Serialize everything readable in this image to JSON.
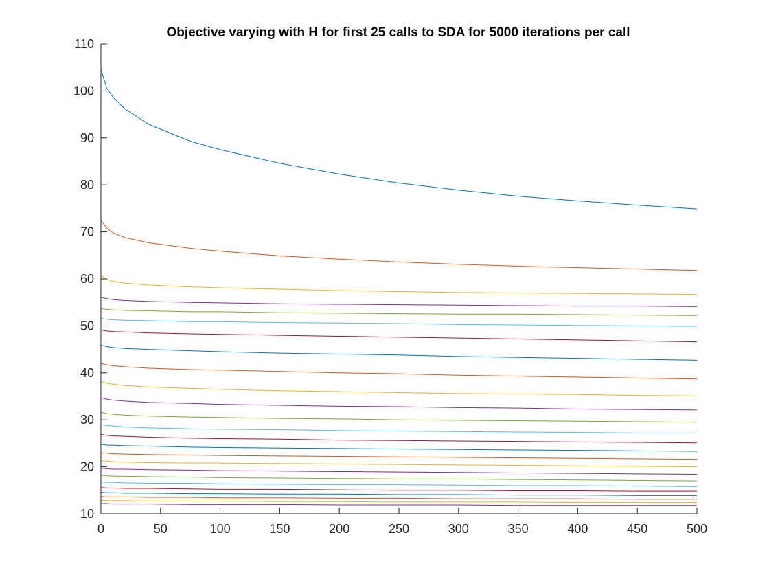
{
  "chart_data": {
    "type": "line",
    "title": "Objective varying with H for first 25 calls to SDA for 5000 iterations per call",
    "xlabel": "",
    "ylabel": "",
    "xlim": [
      0,
      500
    ],
    "ylim": [
      10,
      110
    ],
    "xticks": [
      0,
      50,
      100,
      150,
      200,
      250,
      300,
      350,
      400,
      450,
      500
    ],
    "yticks": [
      10,
      20,
      30,
      40,
      50,
      60,
      70,
      80,
      90,
      100,
      110
    ],
    "grid": false,
    "legend": "none",
    "x": [
      0,
      5,
      10,
      20,
      40,
      75,
      100,
      150,
      200,
      250,
      300,
      350,
      400,
      450,
      500
    ],
    "series": [
      {
        "color": "#0072BD",
        "values": [
          104.6,
          100.5,
          98.7,
          96.2,
          92.9,
          89.3,
          87.5,
          84.6,
          82.3,
          80.4,
          78.9,
          77.6,
          76.6,
          75.7,
          74.9
        ]
      },
      {
        "color": "#D95319",
        "values": [
          72.5,
          70.8,
          69.8,
          68.8,
          67.7,
          66.5,
          65.9,
          64.9,
          64.2,
          63.6,
          63.1,
          62.7,
          62.4,
          62.1,
          61.8
        ]
      },
      {
        "color": "#EDB120",
        "values": [
          60.7,
          59.9,
          59.5,
          59.1,
          58.7,
          58.3,
          58.1,
          57.8,
          57.5,
          57.3,
          57.1,
          57.0,
          56.9,
          56.8,
          56.7
        ]
      },
      {
        "color": "#7E2F8E",
        "values": [
          56.1,
          55.8,
          55.6,
          55.4,
          55.2,
          55.0,
          54.9,
          54.7,
          54.6,
          54.5,
          54.4,
          54.3,
          54.2,
          54.2,
          54.1
        ]
      },
      {
        "color": "#77AC30",
        "values": [
          53.7,
          53.5,
          53.4,
          53.3,
          53.2,
          53.0,
          53.0,
          52.8,
          52.7,
          52.6,
          52.5,
          52.5,
          52.4,
          52.3,
          52.2
        ]
      },
      {
        "color": "#4DBEEE",
        "values": [
          51.6,
          51.4,
          51.3,
          51.2,
          51.1,
          50.9,
          50.9,
          50.7,
          50.6,
          50.5,
          50.3,
          50.2,
          50.1,
          50.0,
          49.9
        ]
      },
      {
        "color": "#A2142F",
        "values": [
          49.1,
          48.9,
          48.8,
          48.7,
          48.5,
          48.3,
          48.2,
          48.0,
          47.8,
          47.6,
          47.4,
          47.2,
          47.0,
          46.8,
          46.6
        ]
      },
      {
        "color": "#0072BD",
        "values": [
          45.9,
          45.6,
          45.4,
          45.2,
          45.0,
          44.7,
          44.5,
          44.2,
          44.0,
          43.8,
          43.5,
          43.3,
          43.1,
          42.9,
          42.7
        ]
      },
      {
        "color": "#D95319",
        "values": [
          42.0,
          41.7,
          41.5,
          41.3,
          41.0,
          40.7,
          40.6,
          40.3,
          40.0,
          39.8,
          39.5,
          39.3,
          39.1,
          38.9,
          38.7
        ]
      },
      {
        "color": "#EDB120",
        "values": [
          38.2,
          37.8,
          37.6,
          37.3,
          37.0,
          36.7,
          36.5,
          36.2,
          36.0,
          35.8,
          35.6,
          35.5,
          35.4,
          35.2,
          35.1
        ]
      },
      {
        "color": "#7E2F8E",
        "values": [
          34.7,
          34.4,
          34.2,
          34.0,
          33.7,
          33.5,
          33.3,
          33.1,
          32.9,
          32.8,
          32.6,
          32.5,
          32.3,
          32.2,
          32.1
        ]
      },
      {
        "color": "#77AC30",
        "values": [
          31.6,
          31.3,
          31.2,
          31.0,
          30.8,
          30.6,
          30.5,
          30.3,
          30.2,
          30.0,
          29.9,
          29.8,
          29.7,
          29.6,
          29.5
        ]
      },
      {
        "color": "#4DBEEE",
        "values": [
          29.0,
          28.8,
          28.7,
          28.5,
          28.3,
          28.1,
          28.0,
          27.9,
          27.7,
          27.6,
          27.5,
          27.4,
          27.3,
          27.2,
          27.2
        ]
      },
      {
        "color": "#A2142F",
        "values": [
          26.9,
          26.7,
          26.6,
          26.5,
          26.3,
          26.1,
          26.0,
          25.9,
          25.7,
          25.6,
          25.5,
          25.4,
          25.3,
          25.2,
          25.1
        ]
      },
      {
        "color": "#0072BD",
        "values": [
          24.8,
          24.6,
          24.6,
          24.5,
          24.4,
          24.2,
          24.1,
          24.0,
          23.9,
          23.8,
          23.7,
          23.6,
          23.5,
          23.4,
          23.3
        ]
      },
      {
        "color": "#D95319",
        "values": [
          23.0,
          22.9,
          22.8,
          22.7,
          22.6,
          22.5,
          22.4,
          22.3,
          22.2,
          22.1,
          22.0,
          21.9,
          21.8,
          21.7,
          21.6
        ]
      },
      {
        "color": "#EDB120",
        "values": [
          21.3,
          21.2,
          21.1,
          21.0,
          20.9,
          20.8,
          20.8,
          20.7,
          20.6,
          20.5,
          20.4,
          20.3,
          20.2,
          20.1,
          20.0
        ]
      },
      {
        "color": "#7E2F8E",
        "values": [
          19.7,
          19.6,
          19.5,
          19.5,
          19.4,
          19.3,
          19.2,
          19.1,
          19.0,
          18.9,
          18.8,
          18.7,
          18.6,
          18.5,
          18.4
        ]
      },
      {
        "color": "#77AC30",
        "values": [
          18.2,
          18.1,
          18.0,
          18.0,
          17.9,
          17.8,
          17.7,
          17.6,
          17.5,
          17.4,
          17.4,
          17.3,
          17.2,
          17.1,
          17.0
        ]
      },
      {
        "color": "#4DBEEE",
        "values": [
          16.8,
          16.7,
          16.7,
          16.6,
          16.5,
          16.5,
          16.4,
          16.3,
          16.2,
          16.2,
          16.1,
          16.0,
          16.0,
          15.9,
          15.8
        ]
      },
      {
        "color": "#A2142F",
        "values": [
          15.6,
          15.5,
          15.5,
          15.4,
          15.4,
          15.3,
          15.2,
          15.2,
          15.1,
          15.0,
          15.0,
          14.9,
          14.9,
          14.8,
          14.8
        ]
      },
      {
        "color": "#0072BD",
        "values": [
          14.6,
          14.5,
          14.5,
          14.4,
          14.4,
          14.3,
          14.3,
          14.2,
          14.2,
          14.1,
          14.1,
          14.0,
          14.0,
          13.9,
          13.9
        ]
      },
      {
        "color": "#D95319",
        "values": [
          13.7,
          13.6,
          13.6,
          13.6,
          13.5,
          13.5,
          13.4,
          13.4,
          13.3,
          13.3,
          13.2,
          13.2,
          13.2,
          13.1,
          13.1
        ]
      },
      {
        "color": "#EDB120",
        "values": [
          12.9,
          12.8,
          12.8,
          12.8,
          12.7,
          12.7,
          12.7,
          12.6,
          12.6,
          12.5,
          12.5,
          12.5,
          12.4,
          12.4,
          12.4
        ]
      },
      {
        "color": "#7E2F8E",
        "values": [
          12.2,
          12.2,
          12.1,
          12.1,
          12.1,
          12.0,
          12.0,
          12.0,
          11.9,
          11.9,
          11.9,
          11.8,
          11.8,
          11.8,
          11.8
        ]
      }
    ]
  }
}
